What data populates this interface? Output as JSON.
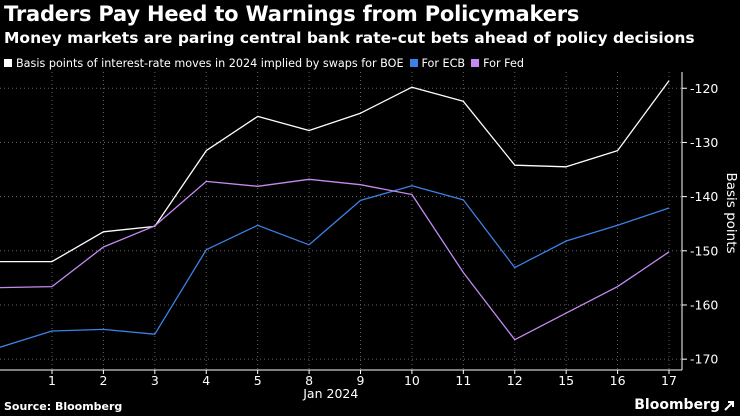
{
  "title": "Traders Pay Heed to Warnings from Policymakers",
  "subtitle": "Money markets are paring central bank rate-cut bets ahead of policy decisions",
  "source": "Source: Bloomberg",
  "brand": "Bloomberg",
  "colors": {
    "boe": "#ffffff",
    "ecb": "#3b82e6",
    "fed": "#c58af2",
    "grid": "#666666",
    "axis": "#ffffff"
  },
  "chart_data": {
    "type": "line",
    "title": "Traders Pay Heed to Warnings from Policymakers",
    "subtitle": "Money markets are paring central bank rate-cut bets ahead of policy decisions",
    "x": [
      "1",
      "2",
      "3",
      "4",
      "5",
      "8",
      "9",
      "10",
      "11",
      "12",
      "15",
      "16",
      "17"
    ],
    "xlabel": "Jan 2024",
    "ylabel": "Basis points",
    "ylim": [
      -172,
      -117
    ],
    "yticks": [
      -120,
      -130,
      -140,
      -150,
      -160,
      -170
    ],
    "ytick_labels": [
      "-120",
      "-130",
      "-140",
      "-150",
      "-160",
      "-170"
    ],
    "y_inverted": true,
    "y_axis_side": "right",
    "grid": "dotted",
    "legend_position": "top-left",
    "series": [
      {
        "name": "Basis points of interest-rate moves in 2024 implied by swaps for BOE",
        "key": "boe",
        "start": -152,
        "values": [
          -152,
          -146.5,
          -145.5,
          -131.5,
          -125.2,
          -127.8,
          -124.6,
          -119.8,
          -122.4,
          -134.2,
          -134.5,
          -131.5,
          -118.6
        ]
      },
      {
        "name": "For ECB",
        "key": "ecb",
        "start": -167.8,
        "values": [
          -164.8,
          -164.5,
          -165.4,
          -149.8,
          -145.3,
          -148.9,
          -140.7,
          -138,
          -140.6,
          -153.1,
          -148.2,
          -145.3,
          -142.1
        ]
      },
      {
        "name": "For Fed",
        "key": "fed",
        "start": -156.8,
        "values": [
          -156.6,
          -149.3,
          -145.4,
          -137.2,
          -138.1,
          -136.8,
          -137.8,
          -139.6,
          -154,
          -166.4,
          -161.5,
          -156.6,
          -150.2
        ]
      }
    ]
  }
}
